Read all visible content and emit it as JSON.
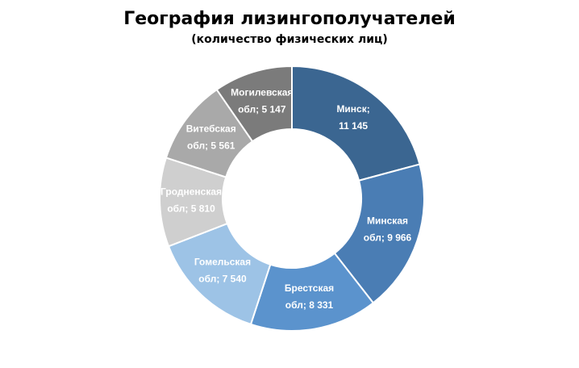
{
  "chart_data": {
    "type": "pie",
    "donut": true,
    "title": "География лизингополучателей",
    "subtitle": "(количество физических лиц)",
    "series": [
      {
        "values": [
          11145,
          9966,
          8331,
          7540,
          5810,
          5561,
          5147
        ],
        "categories": [
          "Минск",
          "Минская обл",
          "Брестская обл",
          "Гомельская обл",
          "Гродненская обл",
          "Витебская обл",
          "Могилевская обл"
        ]
      }
    ],
    "slices": [
      {
        "line1": "Минск;",
        "line2": "11 145",
        "color": "#3b6691"
      },
      {
        "line1": "Минская",
        "line2": "обл; 9 966",
        "color": "#4a7db4"
      },
      {
        "line1": "Брестская",
        "line2": "обл; 8 331",
        "color": "#5b93cd"
      },
      {
        "line1": "Гомельская",
        "line2": "обл; 7 540",
        "color": "#9dc3e6"
      },
      {
        "line1": "Гродненская",
        "line2": "обл; 5 810",
        "color": "#cfcfcf"
      },
      {
        "line1": "Витебская",
        "line2": "обл; 5 561",
        "color": "#a9a9a9"
      },
      {
        "line1": "Могилевская",
        "line2": "обл; 5 147",
        "color": "#7b7b7b"
      }
    ],
    "legend": "none"
  }
}
